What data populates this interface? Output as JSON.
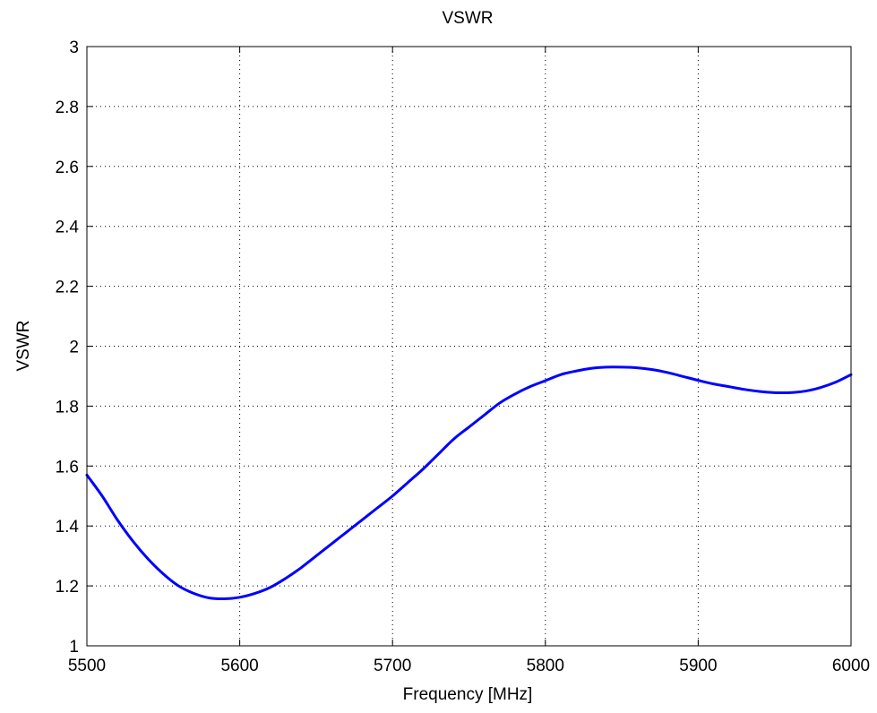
{
  "chart_data": {
    "type": "line",
    "title": "VSWR",
    "xlabel": "Frequency [MHz]",
    "ylabel": "VSWR",
    "xlim": [
      5500,
      6000
    ],
    "ylim": [
      1,
      3
    ],
    "x_ticks": [
      5500,
      5600,
      5700,
      5800,
      5900,
      6000
    ],
    "x_tick_labels": [
      "5500",
      "5600",
      "5700",
      "5800",
      "5900",
      "6000"
    ],
    "y_ticks": [
      1,
      1.2,
      1.4,
      1.6,
      1.8,
      2,
      2.2,
      2.4,
      2.6,
      2.8,
      3
    ],
    "y_tick_labels": [
      "1",
      "1.2",
      "1.4",
      "1.6",
      "1.8",
      "2",
      "2.2",
      "2.4",
      "2.6",
      "2.8",
      "3"
    ],
    "grid": true,
    "series": [
      {
        "color": "#0000ff",
        "x": [
          5500,
          5510,
          5520,
          5530,
          5540,
          5550,
          5560,
          5570,
          5580,
          5590,
          5600,
          5610,
          5620,
          5630,
          5640,
          5650,
          5660,
          5670,
          5680,
          5690,
          5700,
          5710,
          5720,
          5730,
          5740,
          5750,
          5760,
          5770,
          5780,
          5790,
          5800,
          5810,
          5820,
          5830,
          5840,
          5850,
          5860,
          5870,
          5880,
          5890,
          5900,
          5910,
          5920,
          5930,
          5940,
          5950,
          5960,
          5970,
          5980,
          5990,
          6000
        ],
        "y": [
          1.57,
          1.5,
          1.42,
          1.35,
          1.29,
          1.24,
          1.2,
          1.175,
          1.16,
          1.157,
          1.162,
          1.175,
          1.195,
          1.225,
          1.26,
          1.3,
          1.34,
          1.38,
          1.42,
          1.46,
          1.5,
          1.545,
          1.59,
          1.64,
          1.69,
          1.73,
          1.77,
          1.81,
          1.84,
          1.865,
          1.885,
          1.905,
          1.917,
          1.926,
          1.93,
          1.93,
          1.928,
          1.922,
          1.912,
          1.899,
          1.886,
          1.874,
          1.865,
          1.856,
          1.849,
          1.845,
          1.845,
          1.85,
          1.862,
          1.88,
          1.905
        ]
      }
    ]
  }
}
